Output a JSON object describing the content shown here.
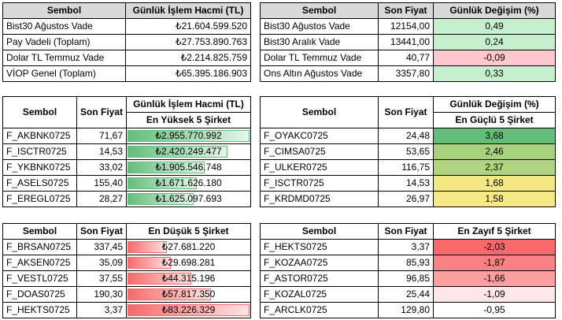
{
  "summary_left": {
    "headers": [
      "Sembol",
      "Günlük İşlem Hacmi (TL)"
    ],
    "rows": [
      {
        "symbol": "Bist30 Ağustos Vade",
        "volume": "₺21.604.599.520"
      },
      {
        "symbol": "Pay Vadeli (Toplam)",
        "volume": "₺27.753.890.763"
      },
      {
        "symbol": "Dolar TL Temmuz Vade",
        "volume": "₺2.214.825.759"
      },
      {
        "symbol": "VİOP Genel (Toplam)",
        "volume": "₺65.395.186.903"
      }
    ]
  },
  "summary_right": {
    "headers": [
      "Sembol",
      "Son Fiyat",
      "Günlük Değişim (%)"
    ],
    "rows": [
      {
        "symbol": "Bist30 Ağustos Vade",
        "price": "12154,00",
        "change": "0,49",
        "color": "#c6efce"
      },
      {
        "symbol": "Bist30 Aralık Vade",
        "price": "13441,00",
        "change": "0,24",
        "color": "#c6efce"
      },
      {
        "symbol": "Dolar TL Temmuz Vade",
        "price": "40,77",
        "change": "-0,09",
        "color": "#ffc7ce"
      },
      {
        "symbol": "Ons Altın Ağustos Vade",
        "price": "3357,80",
        "change": "0,33",
        "color": "#c6efce"
      }
    ]
  },
  "top_volume": {
    "headers": [
      "Sembol",
      "Son Fiyat",
      "Günlük İşlem Hacmi (TL)"
    ],
    "subheader": "En Yüksek 5 Şirket",
    "rows": [
      {
        "symbol": "F_AKBNK0725",
        "price": "71,67",
        "volume": "₺2.955.770.992",
        "fill": 1.0
      },
      {
        "symbol": "F_ISCTR0725",
        "price": "14,53",
        "volume": "₺2.420.249.477",
        "fill": 0.82
      },
      {
        "symbol": "F_YKBNK0725",
        "price": "33,02",
        "volume": "₺1.905.546.748",
        "fill": 0.64
      },
      {
        "symbol": "F_ASELS0725",
        "price": "155,40",
        "volume": "₺1.671.626.180",
        "fill": 0.57
      },
      {
        "symbol": "F_EREGL0725",
        "price": "28,27",
        "volume": "₺1.625.097.693",
        "fill": 0.55
      }
    ]
  },
  "top_gainers": {
    "headers": [
      "Sembol",
      "Son Fiyat",
      "Günlük Değişim (%)"
    ],
    "subheader": "En Güçlü 5 Şirket",
    "rows": [
      {
        "symbol": "F_OYAKC0725",
        "price": "24,48",
        "change": "3,68",
        "color": "#63be7b"
      },
      {
        "symbol": "F_CIMSA0725",
        "price": "53,65",
        "change": "2,46",
        "color": "#a9d27f"
      },
      {
        "symbol": "F_ULKER0725",
        "price": "116,75",
        "change": "2,37",
        "color": "#b0d47f"
      },
      {
        "symbol": "F_ISCTR0725",
        "price": "14,53",
        "change": "1,68",
        "color": "#f4e884"
      },
      {
        "symbol": "F_KRDMD0725",
        "price": "26,97",
        "change": "1,58",
        "color": "#f7e985"
      }
    ]
  },
  "low_volume": {
    "headers": [
      "Sembol",
      "Son Fiyat",
      "En Düşük 5 Şirket"
    ],
    "rows": [
      {
        "symbol": "F_BRSAN0725",
        "price": "337,45",
        "volume": "₺27.681.220",
        "fill": 0.33
      },
      {
        "symbol": "F_AKSEN0725",
        "price": "35,09",
        "volume": "₺29.698.281",
        "fill": 0.36
      },
      {
        "symbol": "F_VESTL0725",
        "price": "37,55",
        "volume": "₺44.315.196",
        "fill": 0.53
      },
      {
        "symbol": "F_DOAS0725",
        "price": "190,30",
        "volume": "₺57.817.350",
        "fill": 0.69
      },
      {
        "symbol": "F_HEKTS0725",
        "price": "3,37",
        "volume": "₺83.226.329",
        "fill": 1.0
      }
    ]
  },
  "top_losers": {
    "headers": [
      "Sembol",
      "Son Fiyat",
      "En Zayıf 5 Şirket"
    ],
    "rows": [
      {
        "symbol": "F_HEKTS0725",
        "price": "3,37",
        "change": "-2,03",
        "color": "#f8696b"
      },
      {
        "symbol": "F_KOZAA0725",
        "price": "85,93",
        "change": "-1,87",
        "color": "#f98284"
      },
      {
        "symbol": "F_ASTOR0725",
        "price": "96,85",
        "change": "-1,66",
        "color": "#fa9e9f"
      },
      {
        "symbol": "F_KOZAL0725",
        "price": "25,44",
        "change": "-1,09",
        "color": "#fde6e7"
      },
      {
        "symbol": "F_ARCLK0725",
        "price": "129,80",
        "change": "-0,95",
        "color": "#ffffff"
      }
    ]
  }
}
